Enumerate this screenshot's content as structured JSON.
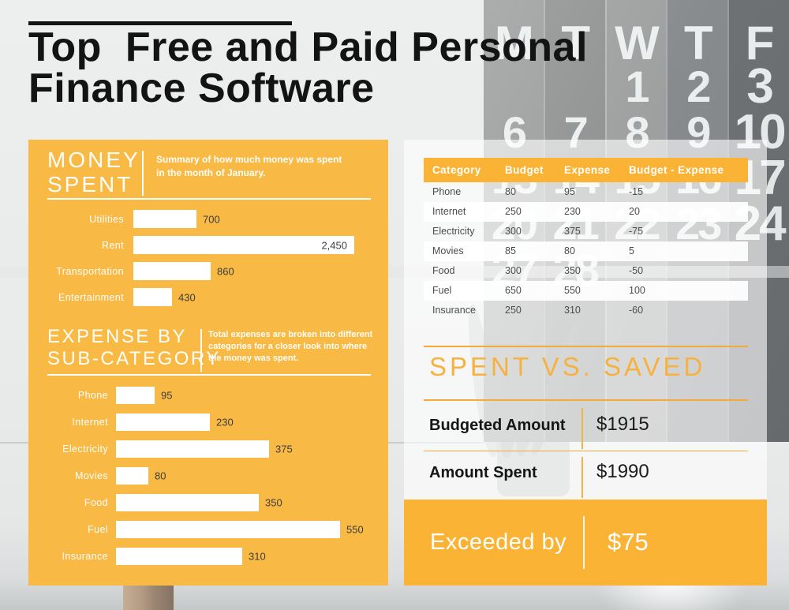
{
  "header": {
    "title_line1": "Top  Free and Paid Personal",
    "title_line2": "Finance Software"
  },
  "money_spent": {
    "heading_line1": "MONEY",
    "heading_line2": "SPENT",
    "description": "Summary of how much money was spent in the month of January."
  },
  "expense_by_subcategory": {
    "heading_line1": "EXPENSE BY",
    "heading_line2": "SUB-CATEGORY",
    "description": "Total expenses are broken into different categories for a closer look into where the money was spent."
  },
  "chart_data": [
    {
      "type": "bar",
      "orientation": "horizontal",
      "title": "MONEY SPENT",
      "categories": [
        "Utilities",
        "Rent",
        "Transportation",
        "Entertainment"
      ],
      "values": [
        700,
        2450,
        860,
        430
      ],
      "value_labels": [
        "700",
        "2,450",
        "860",
        "430"
      ],
      "value_inside": [
        false,
        true,
        false,
        false
      ],
      "bar_color": "#FFFFFF",
      "xlim": [
        0,
        2450
      ],
      "grid": false,
      "legend": false
    },
    {
      "type": "bar",
      "orientation": "horizontal",
      "title": "EXPENSE BY SUB-CATEGORY",
      "categories": [
        "Phone",
        "Internet",
        "Electricity",
        "Movies",
        "Food",
        "Fuel",
        "Insurance"
      ],
      "values": [
        95,
        230,
        375,
        80,
        350,
        550,
        310
      ],
      "value_labels": [
        "95",
        "230",
        "375",
        "80",
        "350",
        "550",
        "310"
      ],
      "value_inside": [
        false,
        false,
        false,
        false,
        false,
        false,
        false
      ],
      "bar_color": "#FFFFFF",
      "xlim": [
        0,
        550
      ],
      "grid": false,
      "legend": false
    }
  ],
  "budget_table": {
    "headers": [
      "Category",
      "Budget",
      "Expense",
      "Budget - Expense"
    ],
    "rows": [
      [
        "Phone",
        "80",
        "95",
        "-15"
      ],
      [
        "Internet",
        "250",
        "230",
        "20"
      ],
      [
        "Electricity",
        "300",
        "375",
        "-75"
      ],
      [
        "Movies",
        "85",
        "80",
        "5"
      ],
      [
        "Food",
        "300",
        "350",
        "-50"
      ],
      [
        "Fuel",
        "650",
        "550",
        "100"
      ],
      [
        "Insurance",
        "250",
        "310",
        "-60"
      ]
    ]
  },
  "spent_vs_saved": {
    "heading": "SPENT VS. SAVED",
    "rows": [
      {
        "label": "Budgeted Amount",
        "value": "$1915"
      },
      {
        "label": "Amount Spent",
        "value": "$1990"
      }
    ]
  },
  "exceeded": {
    "label": "Exceeded by",
    "value": "$75"
  },
  "calendar": {
    "weekdays": [
      "M",
      "T",
      "W",
      "T",
      "F"
    ],
    "columns": [
      [
        "",
        "6",
        "13",
        "20",
        "27"
      ],
      [
        "",
        "7",
        "14",
        "21",
        "28"
      ],
      [
        "1",
        "8",
        "15",
        "22",
        ""
      ],
      [
        "2",
        "9",
        "16",
        "23",
        ""
      ],
      [
        "3",
        "10",
        "17",
        "24",
        ""
      ]
    ]
  },
  "colors": {
    "panel_yellow": "#F8B945",
    "solid_yellow": "#FAB335",
    "rule_yellow": "#F5A93B",
    "heading_yellow": "#F7B13F",
    "title_black": "#141414",
    "bar_white": "#FFFFFF"
  }
}
